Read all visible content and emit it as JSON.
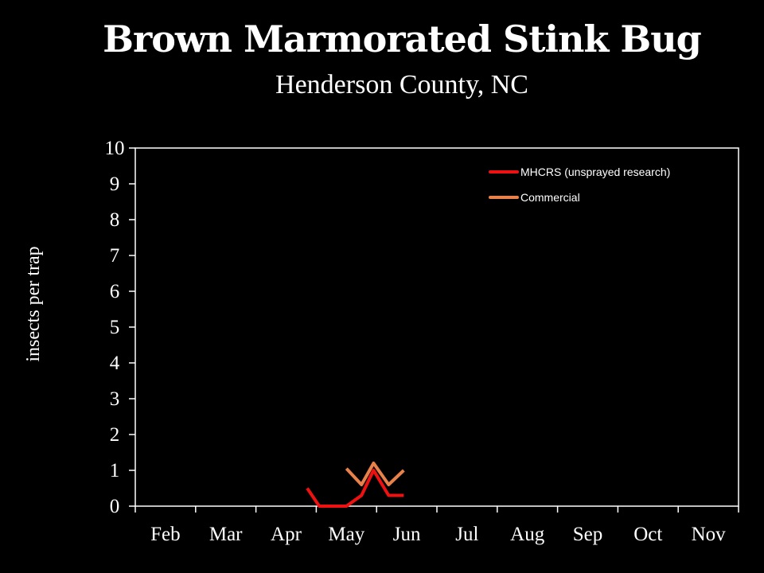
{
  "header": {
    "title": "Brown Marmorated Stink Bug",
    "subtitle": "Henderson County, NC"
  },
  "chart_data": {
    "type": "line",
    "title": "Brown Marmorated Stink Bug",
    "subtitle": "Henderson County, NC",
    "xlabel": "",
    "ylabel": "insects per trap",
    "x_ticks": [
      "Feb",
      "Mar",
      "Apr",
      "May",
      "Jun",
      "Jul",
      "Aug",
      "Sep",
      "Oct",
      "Nov"
    ],
    "y_ticks": [
      "0",
      "1",
      "2",
      "3",
      "4",
      "5",
      "6",
      "7",
      "8",
      "9",
      "10"
    ],
    "xlim": [
      "Feb",
      "Nov"
    ],
    "ylim": [
      0,
      10
    ],
    "grid": false,
    "legend_position": "top-right",
    "series": [
      {
        "name": "MHCRS (unsprayed research)",
        "color": "#ee1111",
        "x": [
          2.35,
          2.55,
          2.8,
          3.0,
          3.25,
          3.45,
          3.7,
          3.95
        ],
        "y": [
          0.5,
          0.0,
          0.0,
          0.0,
          0.3,
          1.0,
          0.3,
          0.3
        ]
      },
      {
        "name": "Commercial",
        "color": "#e8824a",
        "x": [
          3.0,
          3.25,
          3.45,
          3.7,
          3.95
        ],
        "y": [
          1.05,
          0.6,
          1.2,
          0.6,
          1.0
        ]
      }
    ]
  }
}
